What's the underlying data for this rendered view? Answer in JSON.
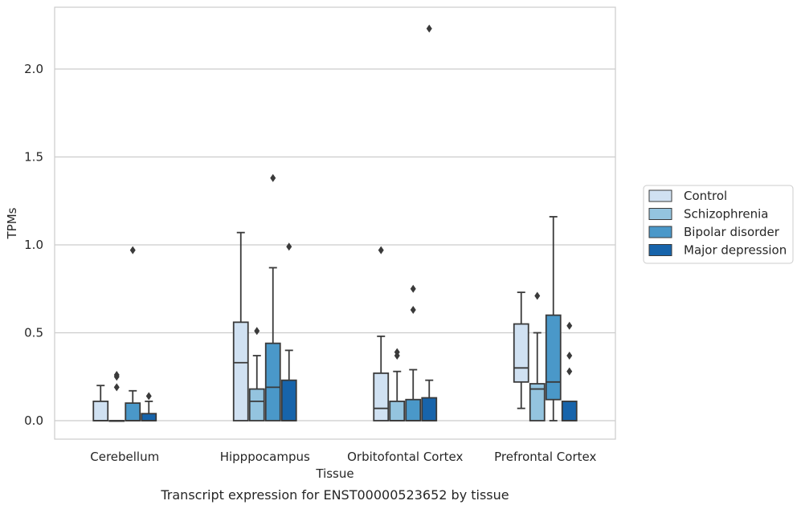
{
  "chart_data": {
    "type": "box",
    "caption": "Transcript expression for ENST00000523652 by tissue",
    "xlabel": "Tissue",
    "ylabel": "TPMs",
    "ylim": [
      -0.11,
      2.35
    ],
    "yticks": [
      0.0,
      0.5,
      1.0,
      1.5,
      2.0
    ],
    "ytick_labels": [
      "0.0",
      "0.5",
      "1.0",
      "1.5",
      "2.0"
    ],
    "grid": "horizontal",
    "legend_position": "right",
    "categories": [
      "Cerebellum",
      "Hipppocampus",
      "Orbitofontal Cortex",
      "Prefrontal Cortex"
    ],
    "series": [
      {
        "name": "Control",
        "color": "#d0e1f2",
        "boxes": [
          {
            "whislo": 0.0,
            "q1": 0.0,
            "med": 0.0,
            "q3": 0.11,
            "whishi": 0.2,
            "fliers": []
          },
          {
            "whislo": 0.0,
            "q1": 0.0,
            "med": 0.33,
            "q3": 0.56,
            "whishi": 1.07,
            "fliers": []
          },
          {
            "whislo": 0.0,
            "q1": 0.0,
            "med": 0.07,
            "q3": 0.27,
            "whishi": 0.48,
            "fliers": [
              0.97
            ]
          },
          {
            "whislo": 0.07,
            "q1": 0.22,
            "med": 0.3,
            "q3": 0.55,
            "whishi": 0.73,
            "fliers": []
          }
        ]
      },
      {
        "name": "Schizophrenia",
        "color": "#94c4df",
        "boxes": [
          {
            "whislo": 0.0,
            "q1": 0.0,
            "med": 0.0,
            "q3": 0.0,
            "whishi": 0.0,
            "fliers": [
              0.19,
              0.25,
              0.26
            ]
          },
          {
            "whislo": 0.0,
            "q1": 0.0,
            "med": 0.11,
            "q3": 0.18,
            "whishi": 0.37,
            "fliers": [
              0.51
            ]
          },
          {
            "whislo": 0.0,
            "q1": 0.0,
            "med": 0.0,
            "q3": 0.11,
            "whishi": 0.28,
            "fliers": [
              0.37,
              0.39
            ]
          },
          {
            "whislo": 0.0,
            "q1": 0.0,
            "med": 0.18,
            "q3": 0.21,
            "whishi": 0.5,
            "fliers": [
              0.71
            ]
          }
        ]
      },
      {
        "name": "Bipolar disorder",
        "color": "#4a98c9",
        "boxes": [
          {
            "whislo": 0.0,
            "q1": 0.0,
            "med": 0.0,
            "q3": 0.1,
            "whishi": 0.17,
            "fliers": [
              0.97
            ]
          },
          {
            "whislo": 0.0,
            "q1": 0.0,
            "med": 0.19,
            "q3": 0.44,
            "whishi": 0.87,
            "fliers": [
              1.38
            ]
          },
          {
            "whislo": 0.0,
            "q1": 0.0,
            "med": 0.0,
            "q3": 0.12,
            "whishi": 0.29,
            "fliers": [
              0.63,
              0.75
            ]
          },
          {
            "whislo": 0.0,
            "q1": 0.12,
            "med": 0.22,
            "q3": 0.6,
            "whishi": 1.16,
            "fliers": []
          }
        ]
      },
      {
        "name": "Major depression",
        "color": "#1764ab",
        "boxes": [
          {
            "whislo": 0.0,
            "q1": 0.0,
            "med": 0.0,
            "q3": 0.04,
            "whishi": 0.11,
            "fliers": [
              0.14
            ]
          },
          {
            "whislo": 0.0,
            "q1": 0.0,
            "med": 0.0,
            "q3": 0.23,
            "whishi": 0.4,
            "fliers": [
              0.99
            ]
          },
          {
            "whislo": 0.0,
            "q1": 0.0,
            "med": 0.0,
            "q3": 0.13,
            "whishi": 0.23,
            "fliers": [
              2.23
            ]
          },
          {
            "whislo": 0.0,
            "q1": 0.0,
            "med": 0.0,
            "q3": 0.11,
            "whishi": 0.11,
            "fliers": [
              0.28,
              0.37,
              0.54
            ]
          }
        ]
      }
    ]
  }
}
